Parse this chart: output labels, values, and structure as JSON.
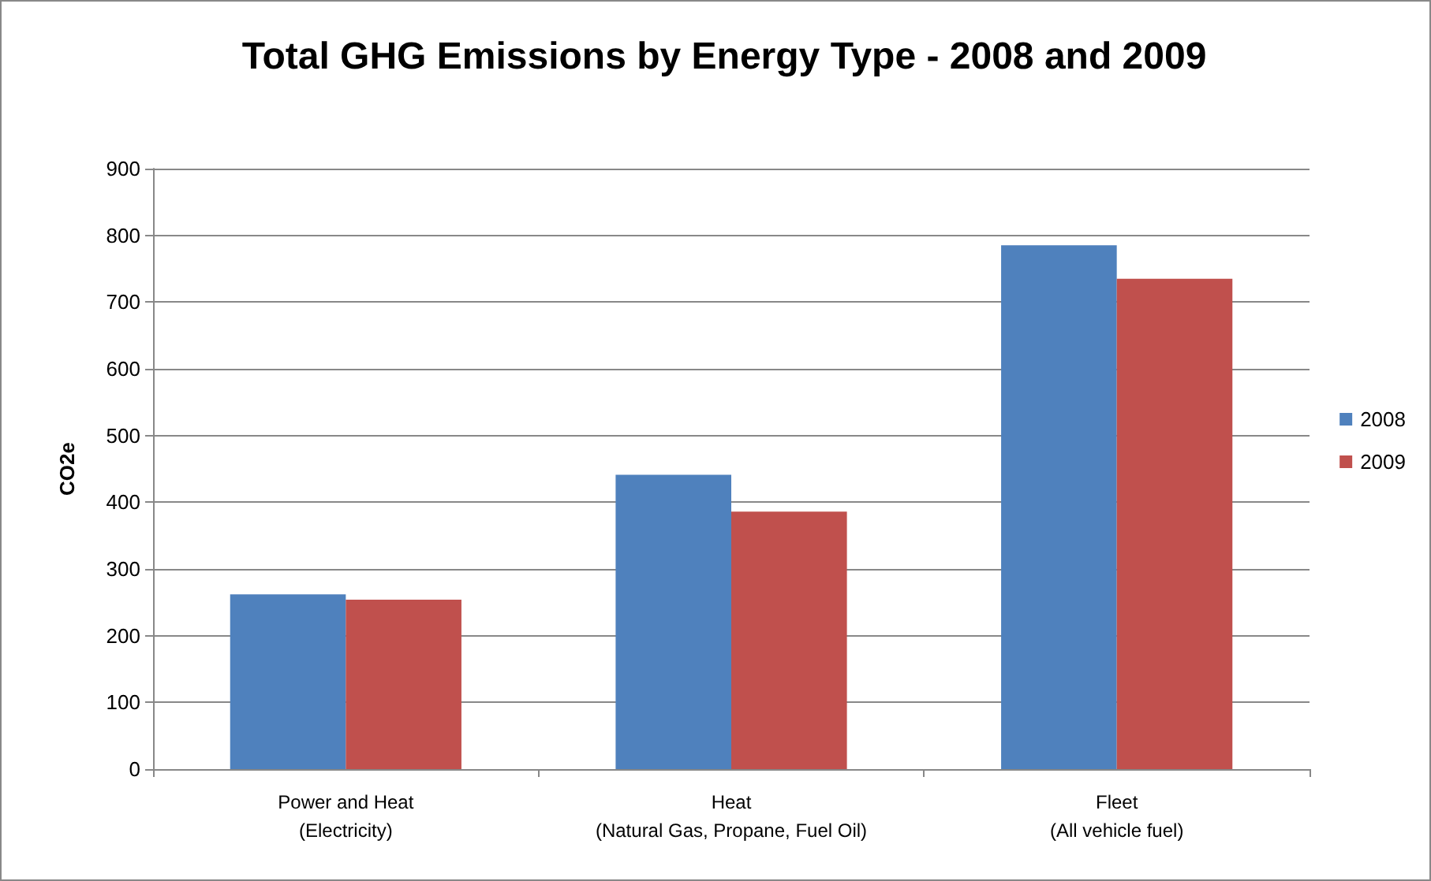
{
  "chart_data": {
    "type": "bar",
    "title": "Total GHG Emissions by Energy Type - 2008 and 2009",
    "ylabel": "CO2e",
    "categories": [
      "Power and Heat\n(Electricity)",
      "Heat\n(Natural Gas, Propane, Fuel Oil)",
      "Fleet\n(All vehicle fuel)"
    ],
    "series": [
      {
        "name": "2008",
        "color": "#4f81bd",
        "values": [
          262,
          441,
          785
        ]
      },
      {
        "name": "2009",
        "color": "#c0504d",
        "values": [
          254,
          386,
          735
        ]
      }
    ],
    "ylim": [
      0,
      900
    ],
    "yticks": [
      0,
      100,
      200,
      300,
      400,
      500,
      600,
      700,
      800,
      900
    ],
    "grid": "y",
    "legend": "right"
  }
}
